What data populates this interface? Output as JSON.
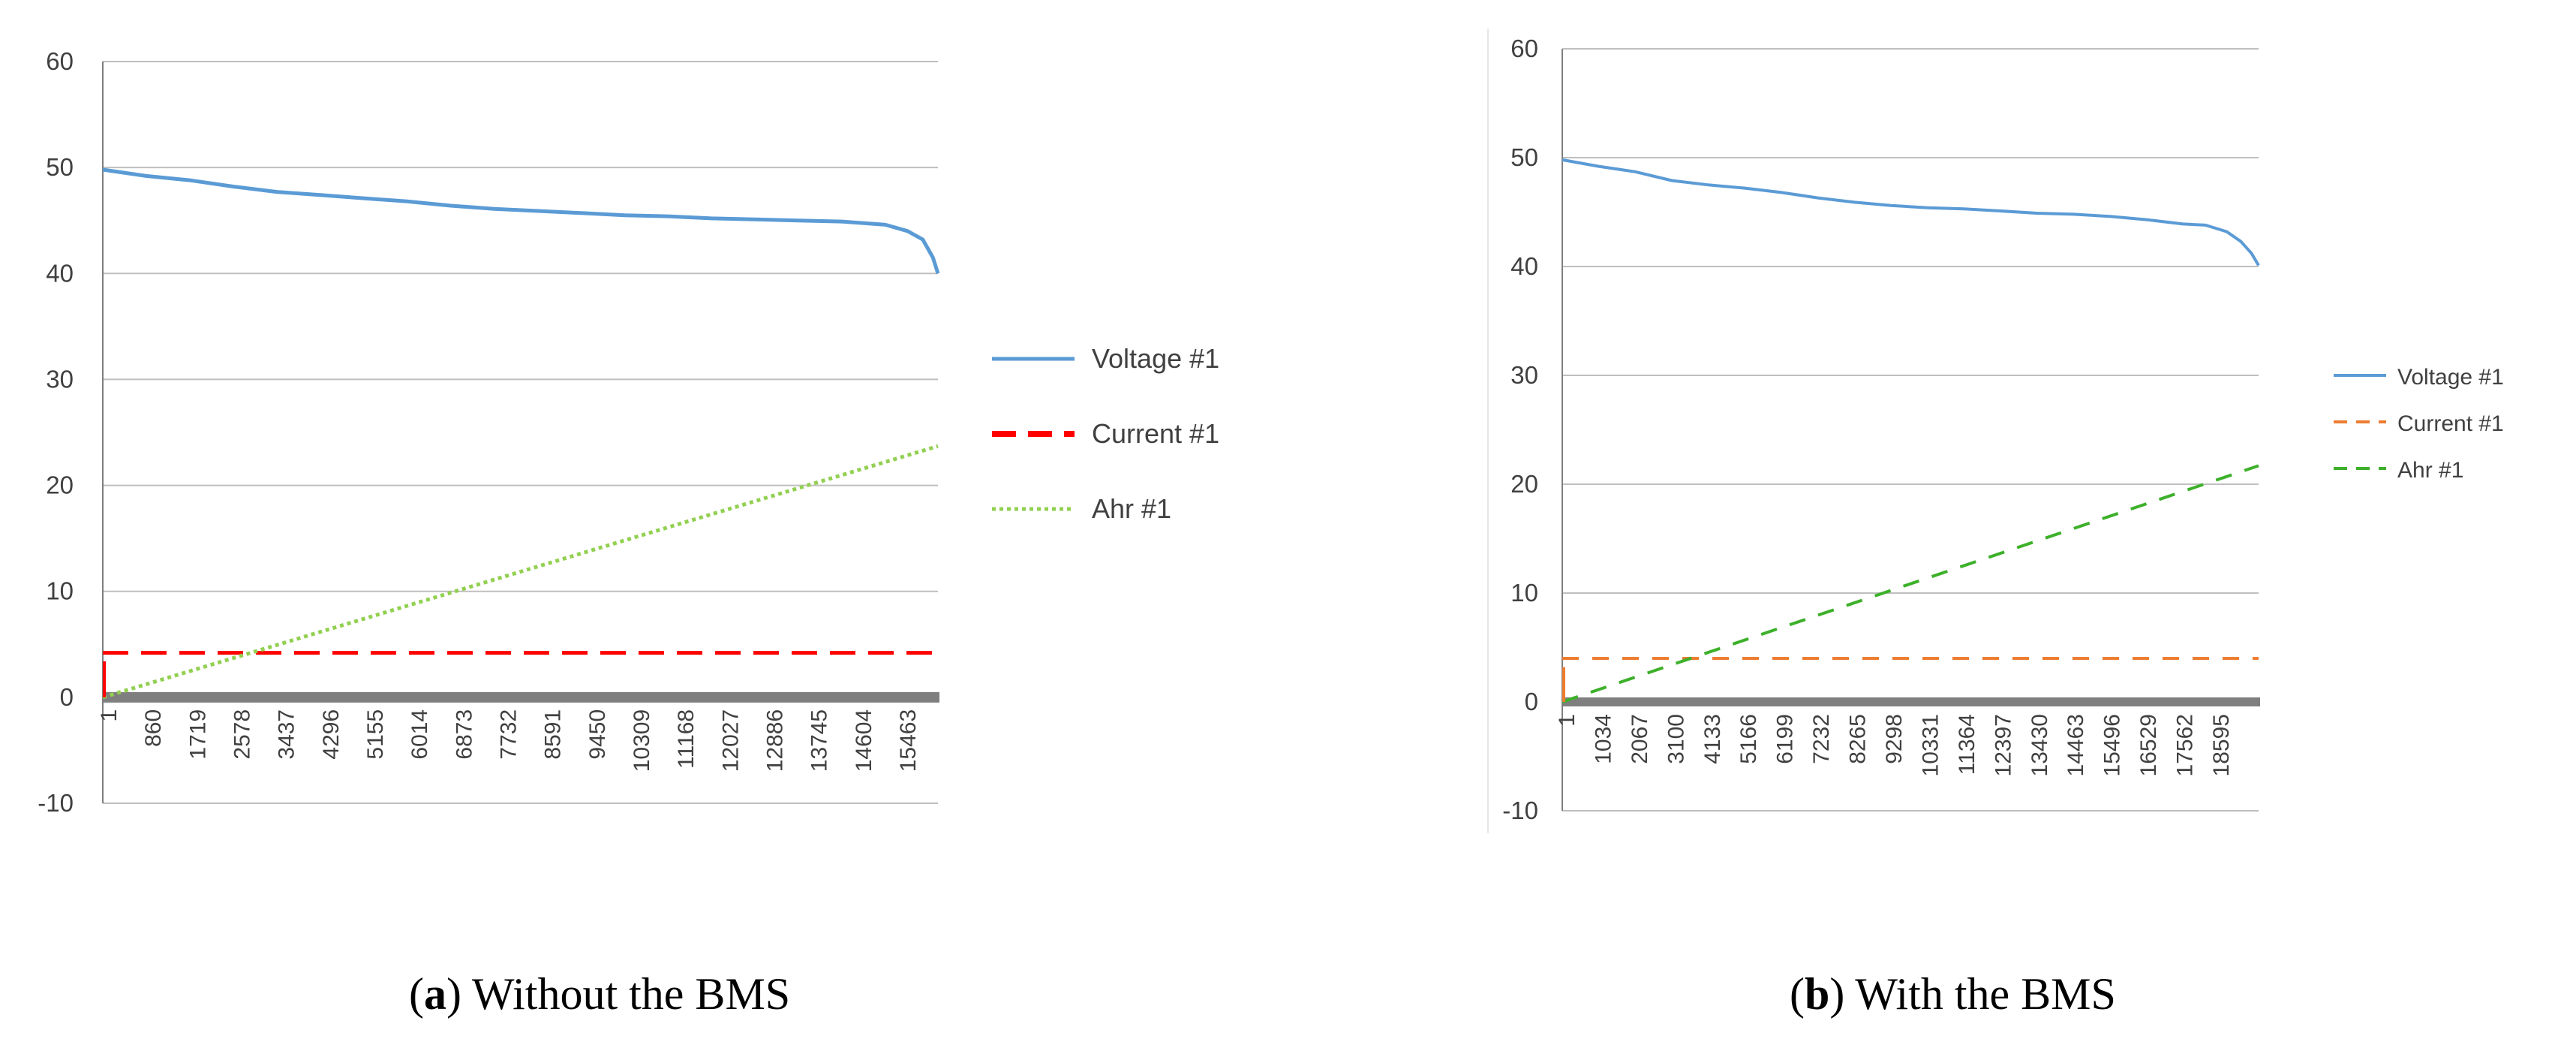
{
  "chart_data": [
    {
      "type": "line",
      "title": "",
      "xlabel": "",
      "ylabel": "",
      "ylim": [
        -10,
        60
      ],
      "yticks": [
        -10,
        0,
        10,
        20,
        30,
        40,
        50,
        60
      ],
      "x_tick_labels": [
        "1",
        "860",
        "1719",
        "2578",
        "3437",
        "4296",
        "5155",
        "6014",
        "6873",
        "7732",
        "8591",
        "9450",
        "10309",
        "11168",
        "12027",
        "12886",
        "13745",
        "14604",
        "15463"
      ],
      "x_range": [
        1,
        16500
      ],
      "grid": true,
      "legend_position": "right",
      "series": [
        {
          "name": "Voltage #1",
          "color": "#5B9BD5",
          "style": "solid",
          "x": [
            1,
            860,
            1719,
            2578,
            3437,
            4296,
            5155,
            6014,
            6873,
            7732,
            8591,
            9450,
            10309,
            11168,
            12027,
            12886,
            13745,
            14604,
            15463,
            15900,
            16200,
            16400,
            16500
          ],
          "y": [
            49.8,
            49.2,
            48.8,
            48.2,
            47.7,
            47.4,
            47.1,
            46.8,
            46.4,
            46.1,
            45.9,
            45.7,
            45.5,
            45.4,
            45.2,
            45.1,
            45.0,
            44.9,
            44.6,
            44.0,
            43.2,
            41.5,
            40.0
          ]
        },
        {
          "name": "Current #1",
          "color": "#FF0000",
          "style": "dashed",
          "x": [
            1,
            16500
          ],
          "y": [
            4.2,
            4.2
          ]
        },
        {
          "name": "Ahr #1",
          "color": "#92D050",
          "style": "dotted",
          "x": [
            1,
            16500
          ],
          "y": [
            0,
            23.7
          ]
        }
      ],
      "caption": {
        "letter": "a",
        "text": "Without the BMS"
      }
    },
    {
      "type": "line",
      "title": "",
      "xlabel": "",
      "ylabel": "",
      "ylim": [
        -10,
        60
      ],
      "yticks": [
        -10,
        0,
        10,
        20,
        30,
        40,
        50,
        60
      ],
      "x_tick_labels": [
        "1",
        "1034",
        "2067",
        "3100",
        "4133",
        "5166",
        "6199",
        "7232",
        "8265",
        "9298",
        "10331",
        "11364",
        "12397",
        "13430",
        "14463",
        "15496",
        "16529",
        "17562",
        "18595"
      ],
      "x_range": [
        1,
        19700
      ],
      "grid": true,
      "legend_position": "right",
      "series": [
        {
          "name": "Voltage #1",
          "color": "#5B9BD5",
          "style": "solid",
          "x": [
            1,
            1034,
            2067,
            3100,
            4133,
            5166,
            6199,
            7232,
            8265,
            9298,
            10331,
            11364,
            12397,
            13430,
            14463,
            15496,
            16529,
            17562,
            18200,
            18800,
            19200,
            19500,
            19700
          ],
          "y": [
            49.8,
            49.2,
            48.7,
            47.9,
            47.5,
            47.2,
            46.8,
            46.3,
            45.9,
            45.6,
            45.4,
            45.3,
            45.1,
            44.9,
            44.8,
            44.6,
            44.3,
            43.9,
            43.8,
            43.2,
            42.3,
            41.2,
            40.1
          ]
        },
        {
          "name": "Current #1",
          "color": "#ED7D31",
          "style": "dashed",
          "x": [
            1,
            19700
          ],
          "y": [
            4.0,
            4.0
          ]
        },
        {
          "name": "Ahr #1",
          "color": "#3DB02A",
          "style": "dashed",
          "x": [
            1,
            19700
          ],
          "y": [
            0,
            21.7
          ]
        }
      ],
      "caption": {
        "letter": "b",
        "text": "With the BMS"
      }
    }
  ]
}
